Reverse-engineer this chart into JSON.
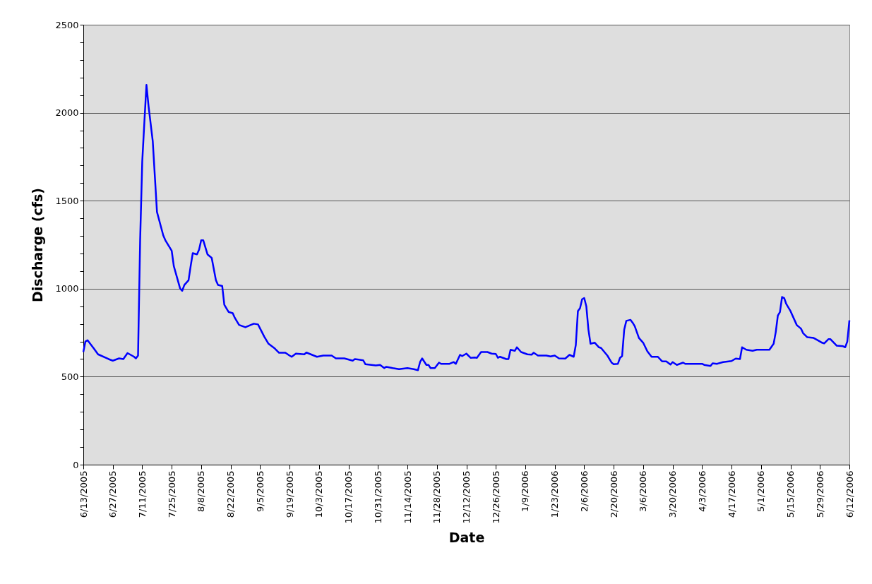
{
  "chart_data": {
    "type": "line",
    "xlabel": "Date",
    "ylabel": "Discharge (cfs)",
    "grid": "y",
    "legend": false,
    "marker": "none",
    "line_style": "solid",
    "xlim": [
      "2005-06-13",
      "2006-06-12"
    ],
    "ylim": [
      0,
      2500
    ],
    "yticks": [
      0,
      {
        "value": 100,
        "label": null
      },
      {
        "value": 200,
        "label": null
      },
      {
        "value": 300,
        "label": null
      },
      {
        "value": 400,
        "label": null
      },
      500,
      {
        "value": 600,
        "label": null
      },
      {
        "value": 700,
        "label": null
      },
      {
        "value": 800,
        "label": null
      },
      {
        "value": 900,
        "label": null
      },
      1000,
      {
        "value": 1100,
        "label": null
      },
      {
        "value": 1200,
        "label": null
      },
      {
        "value": 1300,
        "label": null
      },
      {
        "value": 1400,
        "label": null
      },
      1500,
      {
        "value": 1600,
        "label": null
      },
      {
        "value": 1700,
        "label": null
      },
      {
        "value": 1800,
        "label": null
      },
      {
        "value": 1900,
        "label": null
      },
      2000,
      {
        "value": 2100,
        "label": null
      },
      {
        "value": 2200,
        "label": null
      },
      {
        "value": 2300,
        "label": null
      },
      {
        "value": 2400,
        "label": null
      },
      2500
    ],
    "xticks": [
      {
        "value": "2005-06-13",
        "label": "6/13/2005"
      },
      {
        "value": "2005-06-27",
        "label": "6/27/2005"
      },
      {
        "value": "2005-07-11",
        "label": "7/11/2005"
      },
      {
        "value": "2005-07-25",
        "label": "7/25/2005"
      },
      {
        "value": "2005-08-08",
        "label": "8/8/2005"
      },
      {
        "value": "2005-08-22",
        "label": "8/22/2005"
      },
      {
        "value": "2005-09-05",
        "label": "9/5/2005"
      },
      {
        "value": "2005-09-19",
        "label": "9/19/2005"
      },
      {
        "value": "2005-10-03",
        "label": "10/3/2005"
      },
      {
        "value": "2005-10-17",
        "label": "10/17/2005"
      },
      {
        "value": "2005-10-31",
        "label": "10/31/2005"
      },
      {
        "value": "2005-11-14",
        "label": "11/14/2005"
      },
      {
        "value": "2005-11-28",
        "label": "11/28/2005"
      },
      {
        "value": "2005-12-12",
        "label": "12/12/2005"
      },
      {
        "value": "2005-12-26",
        "label": "12/26/2005"
      },
      {
        "value": "2006-01-09",
        "label": "1/9/2006"
      },
      {
        "value": "2006-01-23",
        "label": "1/23/2006"
      },
      {
        "value": "2006-02-06",
        "label": "2/6/2006"
      },
      {
        "value": "2006-02-20",
        "label": "2/20/2006"
      },
      {
        "value": "2006-03-06",
        "label": "3/6/2006"
      },
      {
        "value": "2006-03-20",
        "label": "3/20/2006"
      },
      {
        "value": "2006-04-03",
        "label": "4/3/2006"
      },
      {
        "value": "2006-04-17",
        "label": "4/17/2006"
      },
      {
        "value": "2006-05-01",
        "label": "5/1/2006"
      },
      {
        "value": "2006-05-15",
        "label": "5/15/2006"
      },
      {
        "value": "2006-05-29",
        "label": "5/29/2006"
      },
      {
        "value": "2006-06-12",
        "label": "6/12/2006"
      }
    ],
    "x": [
      "2005-06-13",
      "2005-06-14",
      "2005-06-15",
      "2005-06-18",
      "2005-06-20",
      "2005-06-25",
      "2005-06-27",
      "2005-06-30",
      "2005-07-02",
      "2005-07-04",
      "2005-07-07",
      "2005-07-08",
      "2005-07-09",
      "2005-07-10",
      "2005-07-11",
      "2005-07-12",
      "2005-07-13",
      "2005-07-14",
      "2005-07-16",
      "2005-07-18",
      "2005-07-21",
      "2005-07-22",
      "2005-07-25",
      "2005-07-26",
      "2005-07-29",
      "2005-07-30",
      "2005-07-31",
      "2005-08-02",
      "2005-08-03",
      "2005-08-04",
      "2005-08-06",
      "2005-08-07",
      "2005-08-08",
      "2005-08-09",
      "2005-08-11",
      "2005-08-13",
      "2005-08-15",
      "2005-08-16",
      "2005-08-18",
      "2005-08-19",
      "2005-08-21",
      "2005-08-23",
      "2005-08-24",
      "2005-08-26",
      "2005-08-29",
      "2005-09-02",
      "2005-09-04",
      "2005-09-07",
      "2005-09-09",
      "2005-09-12",
      "2005-09-14",
      "2005-09-17",
      "2005-09-19",
      "2005-09-20",
      "2005-09-22",
      "2005-09-26",
      "2005-09-27",
      "2005-10-02",
      "2005-10-05",
      "2005-10-09",
      "2005-10-11",
      "2005-10-15",
      "2005-10-19",
      "2005-10-20",
      "2005-10-24",
      "2005-10-25",
      "2005-10-30",
      "2005-11-01",
      "2005-11-03",
      "2005-11-04",
      "2005-11-07",
      "2005-11-10",
      "2005-11-14",
      "2005-11-17",
      "2005-11-19",
      "2005-11-20",
      "2005-11-21",
      "2005-11-23",
      "2005-11-24",
      "2005-11-25",
      "2005-11-27",
      "2005-11-29",
      "2005-11-30",
      "2005-12-04",
      "2005-12-06",
      "2005-12-07",
      "2005-12-09",
      "2005-12-10",
      "2005-12-12",
      "2005-12-14",
      "2005-12-16",
      "2005-12-17",
      "2005-12-19",
      "2005-12-22",
      "2005-12-24",
      "2005-12-26",
      "2005-12-27",
      "2005-12-28",
      "2005-12-31",
      "2006-01-01",
      "2006-01-02",
      "2006-01-04",
      "2006-01-05",
      "2006-01-07",
      "2006-01-10",
      "2006-01-12",
      "2006-01-13",
      "2006-01-15",
      "2006-01-19",
      "2006-01-21",
      "2006-01-23",
      "2006-01-25",
      "2006-01-28",
      "2006-01-30",
      "2006-02-01",
      "2006-02-02",
      "2006-02-03",
      "2006-02-04",
      "2006-02-05",
      "2006-02-06",
      "2006-02-07",
      "2006-02-08",
      "2006-02-09",
      "2006-02-11",
      "2006-02-13",
      "2006-02-14",
      "2006-02-17",
      "2006-02-19",
      "2006-02-20",
      "2006-02-22",
      "2006-02-23",
      "2006-02-24",
      "2006-02-25",
      "2006-02-26",
      "2006-02-28",
      "2006-03-01",
      "2006-03-02",
      "2006-03-04",
      "2006-03-06",
      "2006-03-08",
      "2006-03-10",
      "2006-03-13",
      "2006-03-15",
      "2006-03-17",
      "2006-03-19",
      "2006-03-20",
      "2006-03-22",
      "2006-03-25",
      "2006-03-26",
      "2006-04-03",
      "2006-04-04",
      "2006-04-07",
      "2006-04-08",
      "2006-04-10",
      "2006-04-13",
      "2006-04-17",
      "2006-04-19",
      "2006-04-21",
      "2006-04-22",
      "2006-04-24",
      "2006-04-27",
      "2006-04-29",
      "2006-05-03",
      "2006-05-05",
      "2006-05-07",
      "2006-05-08",
      "2006-05-09",
      "2006-05-10",
      "2006-05-11",
      "2006-05-12",
      "2006-05-13",
      "2006-05-15",
      "2006-05-18",
      "2006-05-20",
      "2006-05-21",
      "2006-05-23",
      "2006-05-26",
      "2006-05-28",
      "2006-05-30",
      "2006-05-31",
      "2006-06-02",
      "2006-06-03",
      "2006-06-06",
      "2006-06-09",
      "2006-06-10",
      "2006-06-11",
      "2006-06-12"
    ],
    "series": [
      {
        "color": "#0000ff",
        "values": [
          640,
          700,
          707,
          660,
          627,
          600,
          591,
          604,
          600,
          634,
          614,
          604,
          620,
          1275,
          1723,
          1944,
          2158,
          2037,
          1837,
          1436,
          1302,
          1275,
          1215,
          1128,
          1001,
          988,
          1021,
          1048,
          1128,
          1202,
          1195,
          1222,
          1275,
          1275,
          1195,
          1175,
          1048,
          1021,
          1015,
          908,
          868,
          861,
          834,
          794,
          781,
          801,
          797,
          727,
          687,
          660,
          636,
          636,
          620,
          613,
          631,
          627,
          637,
          613,
          620,
          620,
          604,
          604,
          591,
          600,
          593,
          571,
          564,
          567,
          549,
          556,
          549,
          543,
          549,
          543,
          537,
          583,
          604,
          567,
          567,
          549,
          549,
          580,
          573,
          573,
          583,
          573,
          624,
          617,
          631,
          607,
          609,
          607,
          640,
          640,
          631,
          629,
          607,
          613,
          600,
          600,
          653,
          647,
          667,
          640,
          627,
          625,
          636,
          620,
          620,
          615,
          620,
          604,
          603,
          624,
          613,
          680,
          873,
          889,
          940,
          947,
          900,
          767,
          687,
          693,
          667,
          663,
          620,
          580,
          571,
          573,
          607,
          617,
          767,
          817,
          823,
          807,
          787,
          720,
          693,
          644,
          613,
          613,
          587,
          587,
          569,
          583,
          567,
          580,
          573,
          573,
          567,
          561,
          576,
          573,
          583,
          589,
          603,
          600,
          667,
          653,
          647,
          653,
          653,
          653,
          687,
          753,
          847,
          867,
          953,
          947,
          913,
          873,
          793,
          773,
          747,
          724,
          720,
          707,
          693,
          689,
          713,
          713,
          676,
          673,
          667,
          700,
          820
        ]
      }
    ]
  }
}
